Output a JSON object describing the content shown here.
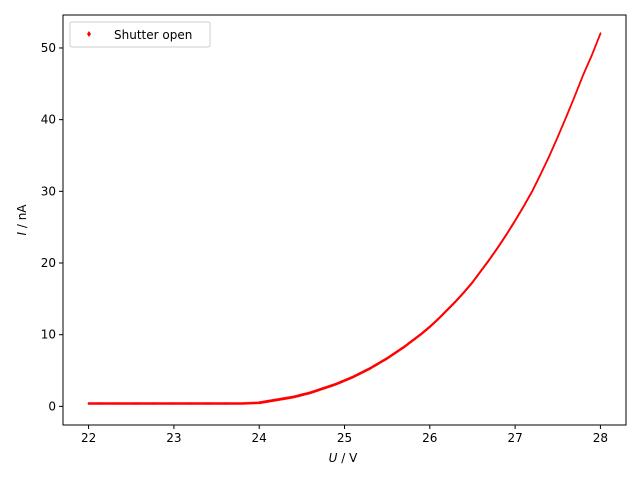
{
  "chart_data": {
    "type": "scatter",
    "xlabel": {
      "var": "U",
      "unit": " / V"
    },
    "ylabel": {
      "var": "I",
      "unit": " / nA"
    },
    "xlim": [
      21.7,
      28.3
    ],
    "ylim": [
      -2.6,
      54.6
    ],
    "xticks": [
      22,
      23,
      24,
      25,
      26,
      27,
      28
    ],
    "yticks": [
      0,
      10,
      20,
      30,
      40,
      50
    ],
    "legend": {
      "placement": "top-left"
    },
    "colors": {
      "series": "#ff0000",
      "axes": "#000000"
    },
    "series": [
      {
        "name": "Shutter open",
        "color": "#ff0000",
        "x": [
          22.0,
          22.2,
          22.4,
          22.6,
          22.8,
          23.0,
          23.2,
          23.4,
          23.6,
          23.8,
          24.0,
          24.1,
          24.2,
          24.3,
          24.4,
          24.5,
          24.6,
          24.7,
          24.8,
          24.9,
          25.0,
          25.1,
          25.2,
          25.3,
          25.4,
          25.5,
          25.6,
          25.7,
          25.8,
          25.9,
          26.0,
          26.1,
          26.2,
          26.3,
          26.4,
          26.5,
          26.6,
          26.7,
          26.8,
          26.9,
          27.0,
          27.1,
          27.2,
          27.3,
          27.4,
          27.5,
          27.6,
          27.7,
          27.8,
          27.9,
          28.0
        ],
        "y": [
          0.4,
          0.4,
          0.4,
          0.4,
          0.4,
          0.4,
          0.4,
          0.4,
          0.4,
          0.4,
          0.5,
          0.7,
          0.9,
          1.1,
          1.3,
          1.6,
          1.9,
          2.3,
          2.7,
          3.1,
          3.6,
          4.1,
          4.7,
          5.3,
          6.0,
          6.7,
          7.5,
          8.3,
          9.2,
          10.1,
          11.1,
          12.2,
          13.4,
          14.6,
          15.9,
          17.3,
          18.9,
          20.5,
          22.2,
          24.0,
          25.9,
          27.9,
          30.0,
          32.4,
          34.9,
          37.6,
          40.4,
          43.3,
          46.3,
          49.0,
          52.0
        ]
      }
    ]
  }
}
